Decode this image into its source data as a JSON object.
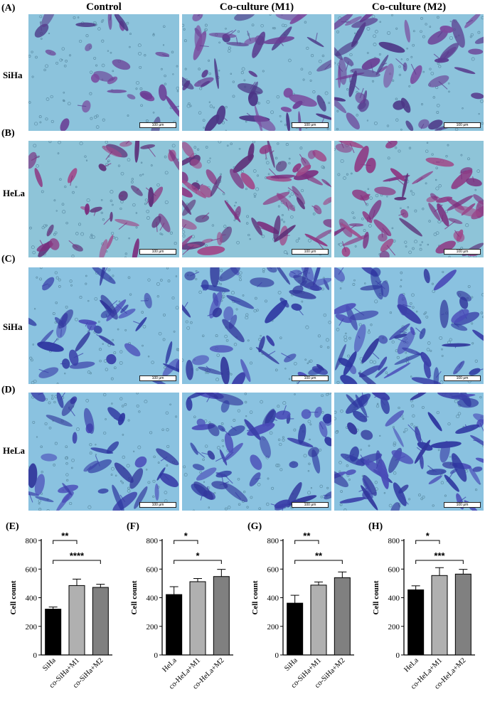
{
  "columns": [
    "Control",
    "Co-culture (M1)",
    "Co-culture (M2)"
  ],
  "rows": [
    {
      "letter": "(A)",
      "label": "SiHa",
      "stain": "purple"
    },
    {
      "letter": "(B)",
      "label": "HeLa",
      "stain": "magenta"
    },
    {
      "letter": "(C)",
      "label": "SiHa",
      "stain": "blue"
    },
    {
      "letter": "(D)",
      "label": "HeLa",
      "stain": "blue"
    }
  ],
  "scale_bar_label": "100 μm",
  "colors": {
    "background_light": "#8ac3dc",
    "bar_black": "#000000",
    "bar_light": "#b0b0b0",
    "bar_mid": "#808080"
  },
  "chart_data": [
    {
      "letter": "(E)",
      "type": "bar",
      "ylabel": "Cell count",
      "ylim": [
        0,
        800
      ],
      "yticks": [
        0,
        200,
        400,
        600,
        800
      ],
      "categories": [
        "SiHa",
        "co-SiHa+M1",
        "co-SiHa+M2"
      ],
      "values": [
        320,
        485,
        472
      ],
      "errors": [
        15,
        45,
        22
      ],
      "significance": [
        {
          "label": "**",
          "from": 0,
          "to": 1
        },
        {
          "label": "****",
          "from": 0,
          "to": 2
        }
      ]
    },
    {
      "letter": "(F)",
      "type": "bar",
      "ylabel": "Cell count",
      "ylim": [
        0,
        800
      ],
      "yticks": [
        0,
        200,
        400,
        600,
        800
      ],
      "categories": [
        "HeLa",
        "co-HeLa+M1",
        "co-HeLa+M2"
      ],
      "values": [
        422,
        512,
        548
      ],
      "errors": [
        55,
        22,
        50
      ],
      "significance": [
        {
          "label": "*",
          "from": 0,
          "to": 1
        },
        {
          "label": "*",
          "from": 0,
          "to": 2
        }
      ]
    },
    {
      "letter": "(G)",
      "type": "bar",
      "ylabel": "Cell count",
      "ylim": [
        0,
        800
      ],
      "yticks": [
        0,
        200,
        400,
        600,
        800
      ],
      "categories": [
        "SiHa",
        "co-SiHa+M1",
        "co-SiHa+M2"
      ],
      "values": [
        362,
        488,
        540
      ],
      "errors": [
        55,
        22,
        40
      ],
      "significance": [
        {
          "label": "**",
          "from": 0,
          "to": 1
        },
        {
          "label": "**",
          "from": 0,
          "to": 2
        }
      ]
    },
    {
      "letter": "(H)",
      "type": "bar",
      "ylabel": "Cell count",
      "ylim": [
        0,
        800
      ],
      "yticks": [
        0,
        200,
        400,
        600,
        800
      ],
      "categories": [
        "HeLa",
        "co-HeLa+M1",
        "co-HeLa+M2"
      ],
      "values": [
        455,
        555,
        565
      ],
      "errors": [
        28,
        55,
        33
      ],
      "significance": [
        {
          "label": "*",
          "from": 0,
          "to": 1
        },
        {
          "label": "***",
          "from": 0,
          "to": 2
        }
      ]
    }
  ]
}
